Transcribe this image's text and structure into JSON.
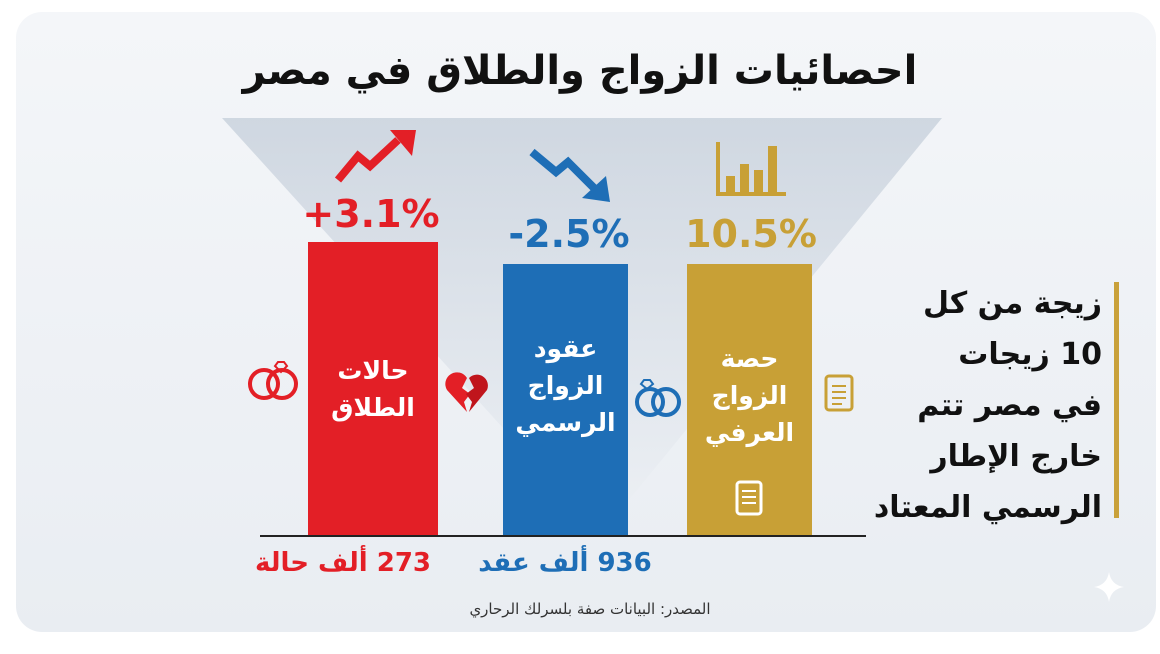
{
  "title": "احصائيات الزواج والطلاق في مصر",
  "colors": {
    "red": "#e31f26",
    "blue": "#1e6eb6",
    "gold": "#c8a036",
    "dark": "#111111"
  },
  "chart_data": {
    "type": "bar",
    "categories": [
      "حالات\nالطلاق",
      "عقود\nالزواج\nالرسمي",
      "حصة\nالزواج\nالعرفي"
    ],
    "changes": [
      "+3.1%",
      "-2.5%",
      "10.5%"
    ],
    "totals": [
      "273 ألف حالة",
      "936 ألف عقد",
      ""
    ],
    "colors": [
      "#e31f26",
      "#1e6eb6",
      "#c8a036"
    ]
  },
  "side_note": "زيجة من كل\n10  زيجات\nفي مصر تتم\nخارج الإطار\nالرسمي المعتاد",
  "source": "المصدر: البيانات صفة بلسرلك الرحاري",
  "icons": [
    "trend-up-arrow-icon",
    "trend-down-arrow-icon",
    "bar-chart-icon",
    "rings-icon",
    "broken-heart-icon",
    "rings-icon",
    "document-icon",
    "document-icon",
    "sparkle-icon"
  ]
}
